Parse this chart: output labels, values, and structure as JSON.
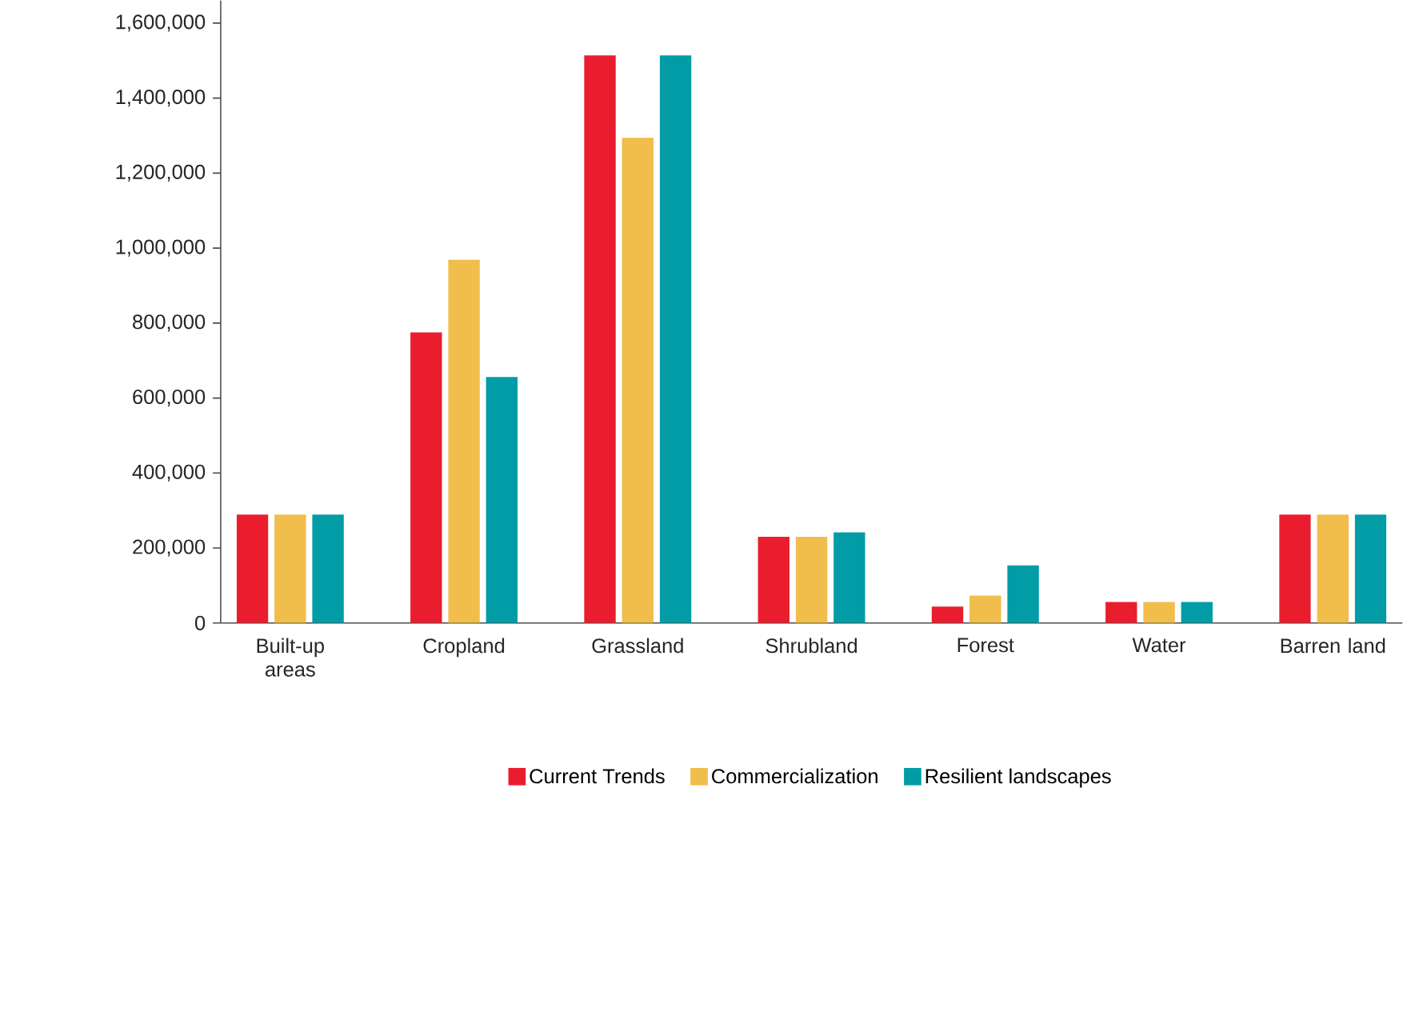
{
  "chart_data": {
    "type": "bar",
    "categories": [
      "Built-up areas",
      "Cropland",
      "Grassland",
      "Shrubland",
      "Forest",
      "Water",
      "Barren land"
    ],
    "series": [
      {
        "name": "Current Trends",
        "color": "#ea1d2e",
        "values": [
          289000,
          775000,
          1514000,
          230000,
          44000,
          56000,
          289000
        ]
      },
      {
        "name": "Commercialization",
        "color": "#f1bd4b",
        "values": [
          289000,
          969000,
          1294000,
          230000,
          73000,
          56000,
          289000
        ]
      },
      {
        "name": "Resilient landscapes",
        "color": "#029ca6",
        "values": [
          289000,
          656000,
          1514000,
          242000,
          154000,
          56000,
          289000
        ]
      }
    ],
    "ylim": [
      0,
      1660000
    ],
    "yticks": [
      0,
      {
        "value": 200000,
        "label": "200,000"
      },
      {
        "value": 400000,
        "label": "400,000"
      },
      {
        "value": 600000,
        "label": "600,000"
      },
      {
        "value": 800000,
        "label": "800,000"
      },
      {
        "value": 1000000,
        "label": "1,000,000"
      },
      {
        "value": 1200000,
        "label": "1,200,000"
      },
      {
        "value": 1400000,
        "label": "1,400,000"
      },
      {
        "value": 1600000,
        "label": "1,600,000"
      }
    ],
    "grid": false,
    "legend": "bottom"
  }
}
